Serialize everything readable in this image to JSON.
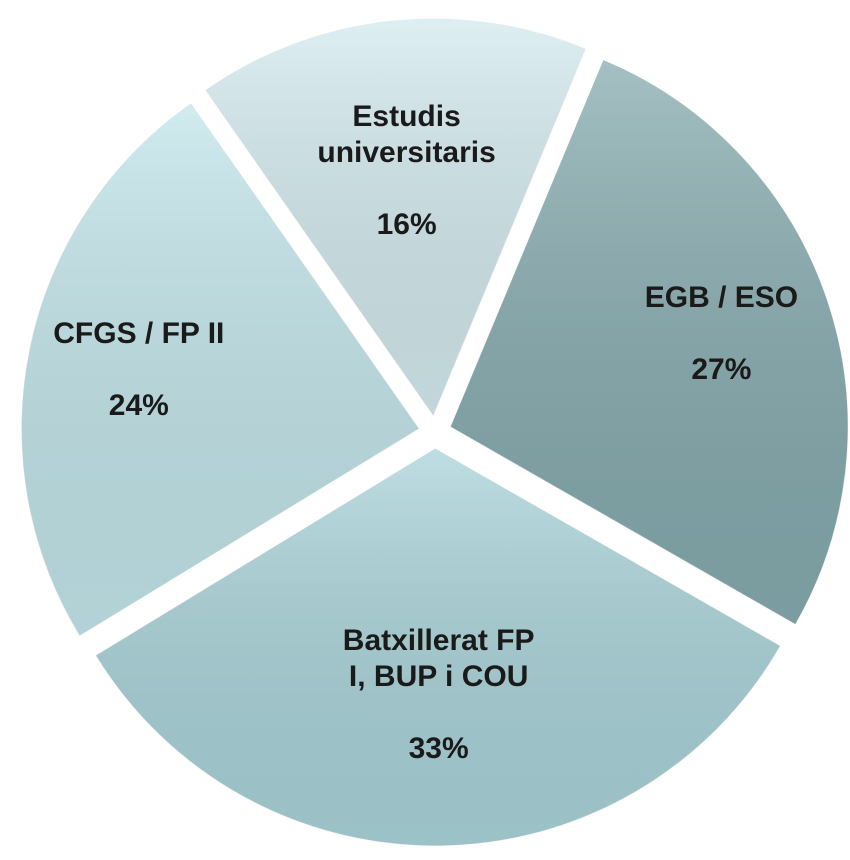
{
  "chart_data": {
    "type": "pie",
    "categories": [
      "Estudis universitaris",
      "EGB / ESO",
      "Batxillerat FP I, BUP i COU",
      "CFGS / FP II"
    ],
    "values": [
      16,
      27,
      33,
      24
    ],
    "value_labels": [
      "16%",
      "27%",
      "33%",
      "24%"
    ],
    "colors": [
      "#d3eaee",
      "#86abaf",
      "#a9d3d9",
      "#c2e5ea"
    ]
  }
}
